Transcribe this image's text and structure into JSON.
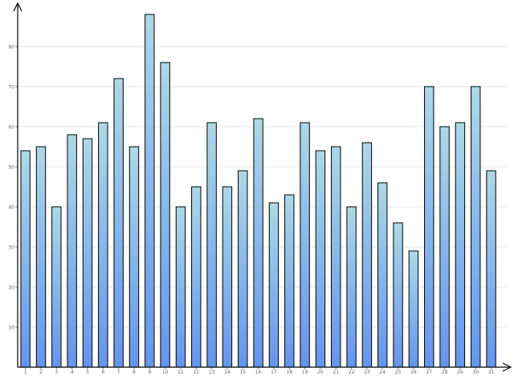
{
  "chart_data": {
    "type": "bar",
    "title": "",
    "xlabel": "",
    "ylabel": "",
    "categories": [
      "1",
      "2",
      "3",
      "4",
      "5",
      "6",
      "7",
      "8",
      "9",
      "10",
      "11",
      "12",
      "13",
      "14",
      "15",
      "16",
      "17",
      "18",
      "19",
      "20",
      "21",
      "22",
      "23",
      "24",
      "25",
      "26",
      "27",
      "28",
      "29",
      "30",
      "31"
    ],
    "values": [
      54,
      55,
      40,
      58,
      57,
      61,
      72,
      55,
      88,
      76,
      40,
      45,
      61,
      45,
      49,
      62,
      41,
      43,
      61,
      54,
      55,
      40,
      56,
      46,
      36,
      29,
      70,
      60,
      61,
      70,
      49
    ],
    "ylim": [
      0,
      90
    ],
    "yticks": [
      10,
      20,
      30,
      40,
      50,
      60,
      70,
      80
    ],
    "ytick_labels": [
      "10",
      "20",
      "30",
      "40",
      "50",
      "60",
      "70",
      "80"
    ],
    "grid": true,
    "legend": "none",
    "colors": {
      "bar_top": "#add8e6",
      "bar_bottom": "#6495ed",
      "bar_stroke": "#000000",
      "grid": "#e6e6e6",
      "axis": "#000000",
      "tick_label": "#666666"
    }
  }
}
